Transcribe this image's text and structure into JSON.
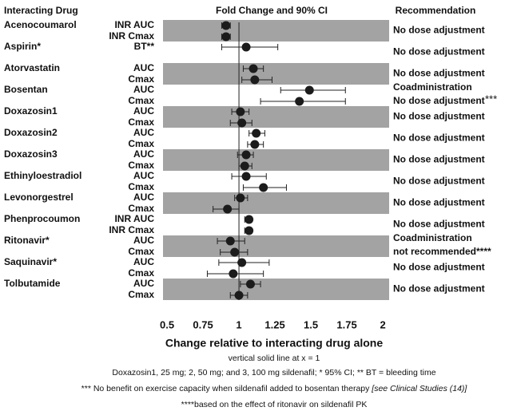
{
  "chart_data": {
    "type": "forest",
    "headers": {
      "drug": "Interacting Drug",
      "plot": "Fold Change and 90% CI",
      "recommendation": "Recommendation"
    },
    "xlabel": "Change relative to interacting drug alone",
    "xlim": [
      0.472,
      2.044
    ],
    "xticks": [
      0.5,
      0.75,
      1,
      1.25,
      1.5,
      1.75,
      2
    ],
    "refline": 1,
    "band_color": "#a3a3a3",
    "marker_color": "#1c1c1c",
    "groups": [
      {
        "drug": "Acenocoumarol",
        "recommendation": [
          "No dose adjustment"
        ],
        "rows": [
          {
            "label": "INR AUC",
            "estimate": 0.91,
            "ci": [
              0.88,
              0.94
            ]
          },
          {
            "label": "INR Cmax",
            "estimate": 0.91,
            "ci": [
              0.88,
              0.94
            ]
          }
        ]
      },
      {
        "drug": "Aspirin*",
        "recommendation": [
          "No dose adjustment"
        ],
        "rows": [
          {
            "label": "BT**",
            "estimate": 1.05,
            "ci": [
              0.88,
              1.27
            ]
          }
        ]
      },
      {
        "drug": "Atorvastatin",
        "recommendation": [
          "No dose adjustment"
        ],
        "rows": [
          {
            "label": "AUC",
            "estimate": 1.1,
            "ci": [
              1.03,
              1.17
            ]
          },
          {
            "label": "Cmax",
            "estimate": 1.11,
            "ci": [
              1.02,
              1.23
            ]
          }
        ]
      },
      {
        "drug": "Bosentan",
        "recommendation": [
          "Coadministration",
          "No dose adjustment"
        ],
        "mark": "***",
        "rows": [
          {
            "label": "AUC",
            "estimate": 1.49,
            "ci": [
              1.29,
              1.74
            ]
          },
          {
            "label": "Cmax",
            "estimate": 1.42,
            "ci": [
              1.15,
              1.74
            ]
          }
        ]
      },
      {
        "drug": "Doxazosin1",
        "recommendation": [
          "No dose adjustment"
        ],
        "rows": [
          {
            "label": "AUC",
            "estimate": 1.01,
            "ci": [
              0.95,
              1.07
            ]
          },
          {
            "label": "Cmax",
            "estimate": 1.02,
            "ci": [
              0.94,
              1.09
            ]
          }
        ]
      },
      {
        "drug": "Doxazosin2",
        "recommendation": [
          "No dose adjustment"
        ],
        "rows": [
          {
            "label": "AUC",
            "estimate": 1.12,
            "ci": [
              1.07,
              1.18
            ]
          },
          {
            "label": "Cmax",
            "estimate": 1.11,
            "ci": [
              1.06,
              1.17
            ]
          }
        ]
      },
      {
        "drug": "Doxazosin3",
        "recommendation": [
          "No dose adjustment"
        ],
        "rows": [
          {
            "label": "AUC",
            "estimate": 1.05,
            "ci": [
              0.99,
              1.1
            ]
          },
          {
            "label": "Cmax",
            "estimate": 1.04,
            "ci": [
              1.0,
              1.09
            ]
          }
        ]
      },
      {
        "drug": "Ethinyloestradiol",
        "recommendation": [
          "No dose adjustment"
        ],
        "rows": [
          {
            "label": "AUC",
            "estimate": 1.05,
            "ci": [
              0.95,
              1.19
            ]
          },
          {
            "label": "Cmax",
            "estimate": 1.17,
            "ci": [
              1.03,
              1.33
            ]
          }
        ]
      },
      {
        "drug": "Levonorgestrel",
        "recommendation": [
          "No dose adjustment"
        ],
        "rows": [
          {
            "label": "AUC",
            "estimate": 1.01,
            "ci": [
              0.97,
              1.06
            ]
          },
          {
            "label": "Cmax",
            "estimate": 0.92,
            "ci": [
              0.82,
              1.0
            ]
          }
        ]
      },
      {
        "drug": "Phenprocoumon",
        "recommendation": [
          "No dose adjustment"
        ],
        "rows": [
          {
            "label": "INR AUC",
            "estimate": 1.07,
            "ci": [
              1.04,
              1.09
            ]
          },
          {
            "label": "INR Cmax",
            "estimate": 1.07,
            "ci": [
              1.04,
              1.09
            ]
          }
        ]
      },
      {
        "drug": "Ritonavir*",
        "recommendation": [
          "Coadministration",
          "not recommended****"
        ],
        "rows": [
          {
            "label": "AUC",
            "estimate": 0.94,
            "ci": [
              0.85,
              1.04
            ]
          },
          {
            "label": "Cmax",
            "estimate": 0.97,
            "ci": [
              0.87,
              1.06
            ]
          }
        ]
      },
      {
        "drug": "Saquinavir*",
        "recommendation": [
          "No dose adjustment"
        ],
        "rows": [
          {
            "label": "AUC",
            "estimate": 1.02,
            "ci": [
              0.86,
              1.21
            ]
          },
          {
            "label": "Cmax",
            "estimate": 0.96,
            "ci": [
              0.78,
              1.17
            ]
          }
        ]
      },
      {
        "drug": "Tolbutamide",
        "recommendation": [
          "No dose adjustment"
        ],
        "rows": [
          {
            "label": "AUC",
            "estimate": 1.08,
            "ci": [
              1.01,
              1.15
            ]
          },
          {
            "label": "Cmax",
            "estimate": 1.0,
            "ci": [
              0.94,
              1.06
            ]
          }
        ]
      }
    ],
    "notes": [
      "vertical solid line at x = 1",
      "Doxazosin1, 25 mg; 2, 50 mg; and 3, 100 mg sildenafil; * 95% CI; ** BT = bleeding time",
      {
        "text": "*** No benefit on exercise capacity when sildenafil added to bosentan therapy ",
        "italic": "[see Clinical Studies (14)]"
      },
      "****based on the effect of ritonavir on sildenafil PK"
    ]
  }
}
